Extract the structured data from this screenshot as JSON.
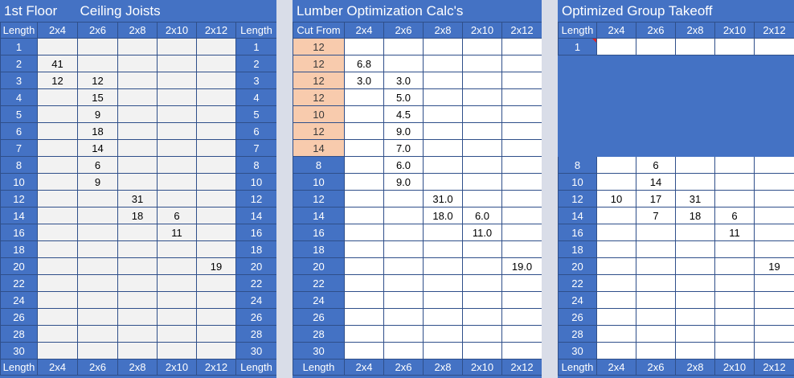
{
  "panels": [
    {
      "title": "1st Floor      Ceiling Joists",
      "header_left": "Length",
      "header_right": "Length",
      "columns": [
        "2x4",
        "2x6",
        "2x8",
        "2x10",
        "2x12"
      ],
      "footer_left": "Length",
      "footer_columns": [
        "2x4",
        "2x6",
        "2x8",
        "2x10",
        "2x12"
      ],
      "footer_right": "Length",
      "rows": [
        {
          "len": "1",
          "cells": [
            "",
            "",
            "",
            "",
            ""
          ]
        },
        {
          "len": "2",
          "cells": [
            "41",
            "",
            "",
            "",
            ""
          ]
        },
        {
          "len": "3",
          "cells": [
            "12",
            "12",
            "",
            "",
            ""
          ]
        },
        {
          "len": "4",
          "cells": [
            "",
            "15",
            "",
            "",
            ""
          ]
        },
        {
          "len": "5",
          "cells": [
            "",
            "9",
            "",
            "",
            ""
          ]
        },
        {
          "len": "6",
          "cells": [
            "",
            "18",
            "",
            "",
            ""
          ]
        },
        {
          "len": "7",
          "cells": [
            "",
            "14",
            "",
            "",
            ""
          ]
        },
        {
          "len": "8",
          "cells": [
            "",
            "6",
            "",
            "",
            ""
          ]
        },
        {
          "len": "10",
          "cells": [
            "",
            "9",
            "",
            "",
            ""
          ]
        },
        {
          "len": "12",
          "cells": [
            "",
            "",
            "31",
            "",
            ""
          ]
        },
        {
          "len": "14",
          "cells": [
            "",
            "",
            "18",
            "6",
            ""
          ]
        },
        {
          "len": "16",
          "cells": [
            "",
            "",
            "",
            "11",
            ""
          ]
        },
        {
          "len": "18",
          "cells": [
            "",
            "",
            "",
            "",
            ""
          ]
        },
        {
          "len": "20",
          "cells": [
            "",
            "",
            "",
            "",
            "19"
          ]
        },
        {
          "len": "22",
          "cells": [
            "",
            "",
            "",
            "",
            ""
          ]
        },
        {
          "len": "24",
          "cells": [
            "",
            "",
            "",
            "",
            ""
          ]
        },
        {
          "len": "26",
          "cells": [
            "",
            "",
            "",
            "",
            ""
          ]
        },
        {
          "len": "28",
          "cells": [
            "",
            "",
            "",
            "",
            ""
          ]
        },
        {
          "len": "30",
          "cells": [
            "",
            "",
            "",
            "",
            ""
          ]
        }
      ]
    },
    {
      "title": "Lumber Optimization Calc's",
      "header_left": "Cut From",
      "columns": [
        "2x4",
        "2x6",
        "2x8",
        "2x10",
        "2x12"
      ],
      "footer_left": "Length",
      "footer_columns": [
        "2x4",
        "2x6",
        "2x8",
        "2x10",
        "2x12"
      ],
      "rows": [
        {
          "len": "12",
          "orange": true,
          "cells": [
            "",
            "",
            "",
            "",
            ""
          ]
        },
        {
          "len": "12",
          "orange": true,
          "cells": [
            "6.8",
            "",
            "",
            "",
            ""
          ]
        },
        {
          "len": "12",
          "orange": true,
          "cells": [
            "3.0",
            "3.0",
            "",
            "",
            ""
          ]
        },
        {
          "len": "12",
          "orange": true,
          "cells": [
            "",
            "5.0",
            "",
            "",
            ""
          ]
        },
        {
          "len": "10",
          "orange": true,
          "cells": [
            "",
            "4.5",
            "",
            "",
            ""
          ]
        },
        {
          "len": "12",
          "orange": true,
          "cells": [
            "",
            "9.0",
            "",
            "",
            ""
          ]
        },
        {
          "len": "14",
          "orange": true,
          "cells": [
            "",
            "7.0",
            "",
            "",
            ""
          ]
        },
        {
          "len": "8",
          "cells": [
            "",
            "6.0",
            "",
            "",
            ""
          ]
        },
        {
          "len": "10",
          "cells": [
            "",
            "9.0",
            "",
            "",
            ""
          ]
        },
        {
          "len": "12",
          "cells": [
            "",
            "",
            "31.0",
            "",
            ""
          ]
        },
        {
          "len": "14",
          "cells": [
            "",
            "",
            "18.0",
            "6.0",
            ""
          ]
        },
        {
          "len": "16",
          "cells": [
            "",
            "",
            "",
            "11.0",
            ""
          ]
        },
        {
          "len": "18",
          "cells": [
            "",
            "",
            "",
            "",
            ""
          ]
        },
        {
          "len": "20",
          "cells": [
            "",
            "",
            "",
            "",
            "19.0"
          ]
        },
        {
          "len": "22",
          "cells": [
            "",
            "",
            "",
            "",
            ""
          ]
        },
        {
          "len": "24",
          "cells": [
            "",
            "",
            "",
            "",
            ""
          ]
        },
        {
          "len": "26",
          "cells": [
            "",
            "",
            "",
            "",
            ""
          ]
        },
        {
          "len": "28",
          "cells": [
            "",
            "",
            "",
            "",
            ""
          ]
        },
        {
          "len": "30",
          "cells": [
            "",
            "",
            "",
            "",
            ""
          ]
        }
      ]
    },
    {
      "title": "Optimized Group Takeoff",
      "header_left": "Length",
      "columns": [
        "2x4",
        "2x6",
        "2x8",
        "2x10",
        "2x12"
      ],
      "footer_left": "Length",
      "footer_columns": [
        "2x4",
        "2x6",
        "2x8",
        "2x10",
        "2x12"
      ],
      "rows": [
        {
          "len": "1",
          "cells": [
            "",
            "",
            "",
            "",
            ""
          ]
        },
        {
          "len": "",
          "selected": true,
          "cells": [
            "",
            "",
            "",
            "",
            ""
          ]
        },
        {
          "len": "",
          "selected": true,
          "cells": [
            "",
            "",
            "",
            "",
            ""
          ]
        },
        {
          "len": "",
          "selected": true,
          "cells": [
            "",
            "",
            "",
            "",
            ""
          ]
        },
        {
          "len": "",
          "selected": true,
          "cells": [
            "",
            "",
            "",
            "",
            ""
          ]
        },
        {
          "len": "",
          "selected": true,
          "cells": [
            "",
            "",
            "",
            "",
            ""
          ]
        },
        {
          "len": "",
          "selected": true,
          "cells": [
            "",
            "",
            "",
            "",
            ""
          ]
        },
        {
          "len": "8",
          "cells": [
            "",
            "6",
            "",
            "",
            ""
          ]
        },
        {
          "len": "10",
          "cells": [
            "",
            "14",
            "",
            "",
            ""
          ]
        },
        {
          "len": "12",
          "cells": [
            "10",
            "17",
            "31",
            "",
            ""
          ]
        },
        {
          "len": "14",
          "cells": [
            "",
            "7",
            "18",
            "6",
            ""
          ]
        },
        {
          "len": "16",
          "cells": [
            "",
            "",
            "",
            "11",
            ""
          ]
        },
        {
          "len": "18",
          "cells": [
            "",
            "",
            "",
            "",
            ""
          ]
        },
        {
          "len": "20",
          "cells": [
            "",
            "",
            "",
            "",
            "19"
          ]
        },
        {
          "len": "22",
          "cells": [
            "",
            "",
            "",
            "",
            ""
          ]
        },
        {
          "len": "24",
          "cells": [
            "",
            "",
            "",
            "",
            ""
          ]
        },
        {
          "len": "26",
          "cells": [
            "",
            "",
            "",
            "",
            ""
          ]
        },
        {
          "len": "28",
          "cells": [
            "",
            "",
            "",
            "",
            ""
          ]
        },
        {
          "len": "30",
          "cells": [
            "",
            "",
            "",
            "",
            ""
          ]
        }
      ]
    }
  ],
  "colors": {
    "header_blue": "#4472c4",
    "orange": "#f8cbad",
    "gray": "#f2f2f2",
    "separator": "#d9dde8"
  }
}
